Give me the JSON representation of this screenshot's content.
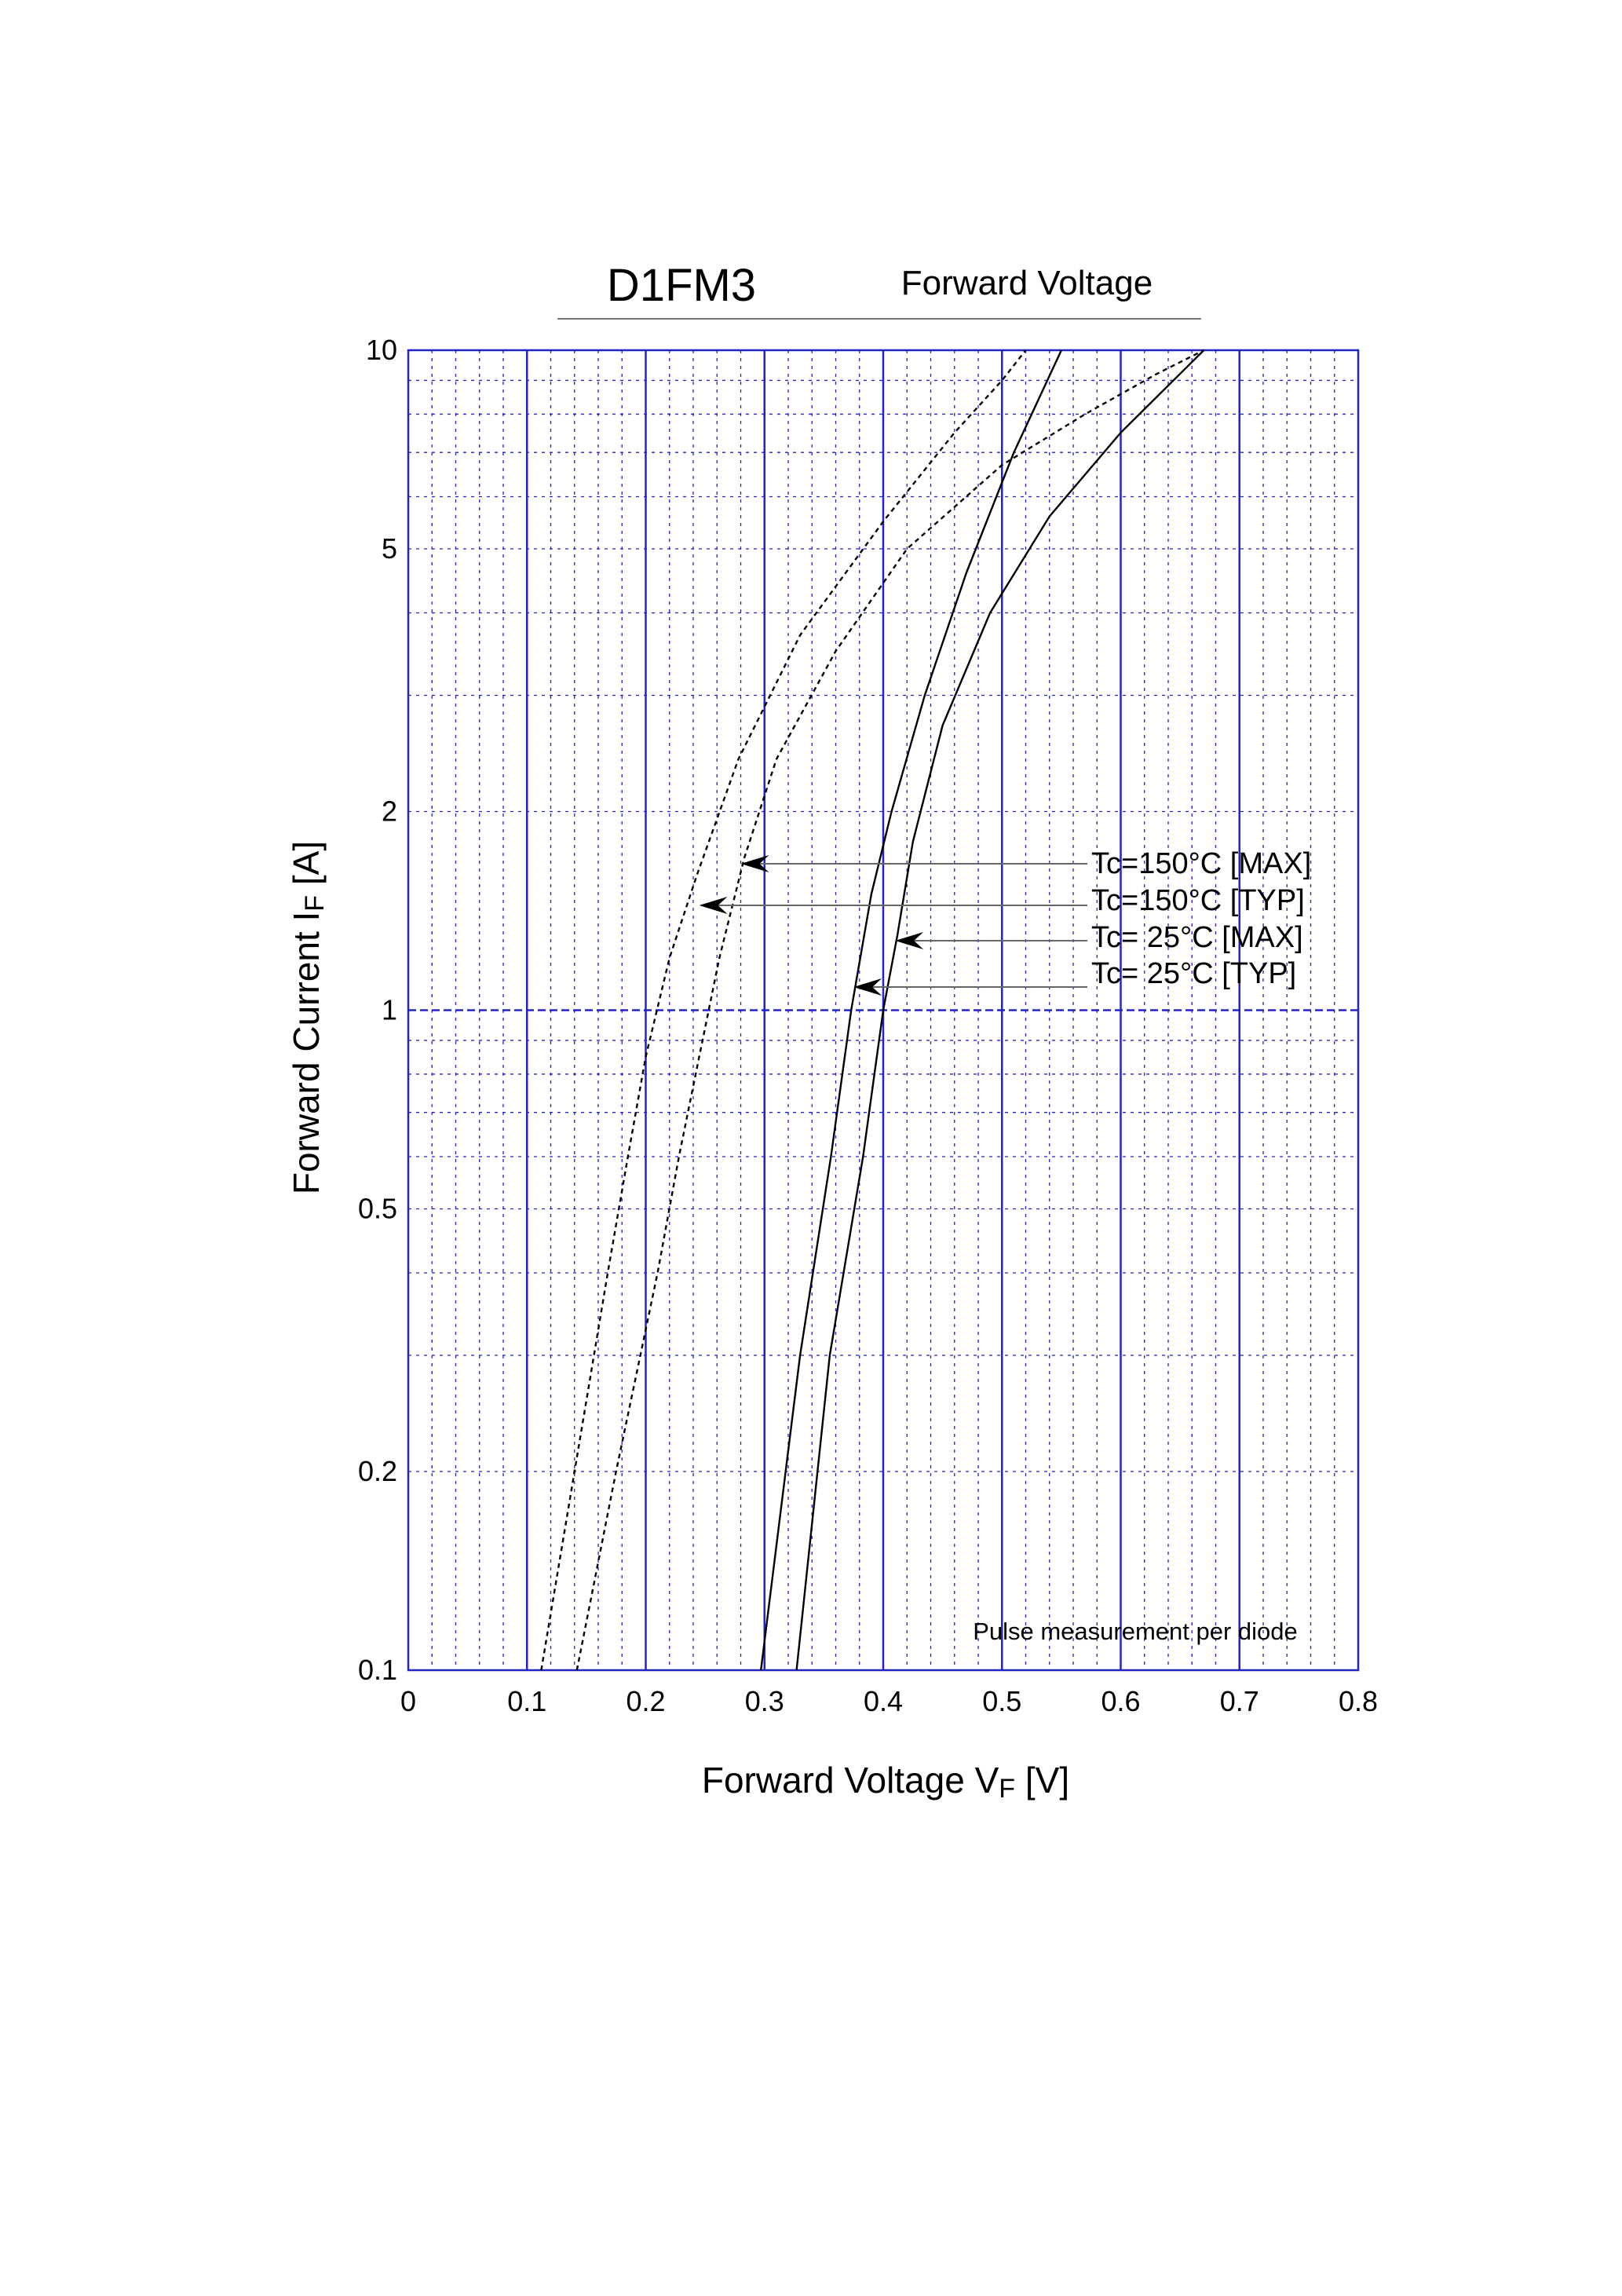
{
  "chart_data": {
    "type": "line",
    "title": "D1FM3",
    "subtitle": "Forward Voltage",
    "xlabel": "Forward Voltage  V",
    "xlabel_sub": "F",
    "xlabel_unit": "[V]",
    "ylabel": "Forward Current  I",
    "ylabel_sub": "F",
    "ylabel_unit": "[A]",
    "xlim": [
      0,
      0.8
    ],
    "ylim": [
      0.1,
      10
    ],
    "yscale": "log",
    "xticks": [
      "0",
      "0.1",
      "0.2",
      "0.3",
      "0.4",
      "0.5",
      "0.6",
      "0.7",
      "0.8"
    ],
    "yticks": [
      {
        "value": 0.1,
        "label": "0.1"
      },
      {
        "value": 0.2,
        "label": "0.2"
      },
      {
        "value": 0.5,
        "label": "0.5"
      },
      {
        "value": 1,
        "label": "1"
      },
      {
        "value": 2,
        "label": "2"
      },
      {
        "value": 5,
        "label": "5"
      },
      {
        "value": 10,
        "label": "10"
      }
    ],
    "grid": true,
    "note": "Pulse measurement per diode",
    "series": [
      {
        "name": "Tc=150°C [MAX]",
        "style": "dashed",
        "points": [
          [
            0.142,
            0.1
          ],
          [
            0.175,
            0.2
          ],
          [
            0.21,
            0.4
          ],
          [
            0.228,
            0.6
          ],
          [
            0.245,
            0.85
          ],
          [
            0.262,
            1.2
          ],
          [
            0.283,
            1.7
          ],
          [
            0.31,
            2.4
          ],
          [
            0.36,
            3.5
          ],
          [
            0.42,
            5
          ],
          [
            0.5,
            6.7
          ],
          [
            0.57,
            8
          ],
          [
            0.63,
            9.2
          ],
          [
            0.67,
            10
          ]
        ]
      },
      {
        "name": "Tc=150°C [TYP]",
        "style": "dashed",
        "points": [
          [
            0.112,
            0.1
          ],
          [
            0.14,
            0.2
          ],
          [
            0.168,
            0.4
          ],
          [
            0.185,
            0.6
          ],
          [
            0.2,
            0.85
          ],
          [
            0.22,
            1.2
          ],
          [
            0.243,
            1.6
          ],
          [
            0.278,
            2.4
          ],
          [
            0.33,
            3.7
          ],
          [
            0.4,
            5.5
          ],
          [
            0.46,
            7.5
          ],
          [
            0.5,
            9
          ],
          [
            0.52,
            10
          ]
        ]
      },
      {
        "name": "Tc=  25°C [MAX]",
        "style": "solid",
        "points": [
          [
            0.327,
            0.1
          ],
          [
            0.355,
            0.3
          ],
          [
            0.383,
            0.6
          ],
          [
            0.4,
            1
          ],
          [
            0.412,
            1.3
          ],
          [
            0.425,
            1.8
          ],
          [
            0.45,
            2.7
          ],
          [
            0.49,
            4
          ],
          [
            0.54,
            5.6
          ],
          [
            0.6,
            7.5
          ],
          [
            0.67,
            10
          ]
        ]
      },
      {
        "name": "Tc=  25°C [TYP]",
        "style": "solid",
        "points": [
          [
            0.297,
            0.1
          ],
          [
            0.33,
            0.3
          ],
          [
            0.356,
            0.6
          ],
          [
            0.373,
            1
          ],
          [
            0.39,
            1.5
          ],
          [
            0.407,
            2
          ],
          [
            0.435,
            3
          ],
          [
            0.47,
            4.6
          ],
          [
            0.51,
            7
          ],
          [
            0.55,
            10
          ]
        ]
      }
    ],
    "annotations": [
      {
        "text": "Tc=150°C [MAX]",
        "arrow_to": [
          0.28,
          1.68
        ]
      },
      {
        "text": "Tc=150°C [TYP]",
        "arrow_to": [
          0.245,
          1.47
        ]
      },
      {
        "text": "Tc=  25°C [MAX]",
        "arrow_to": [
          0.41,
          1.3
        ]
      },
      {
        "text": "Tc=  25°C [TYP]",
        "arrow_to": [
          0.375,
          1.1
        ]
      }
    ]
  }
}
